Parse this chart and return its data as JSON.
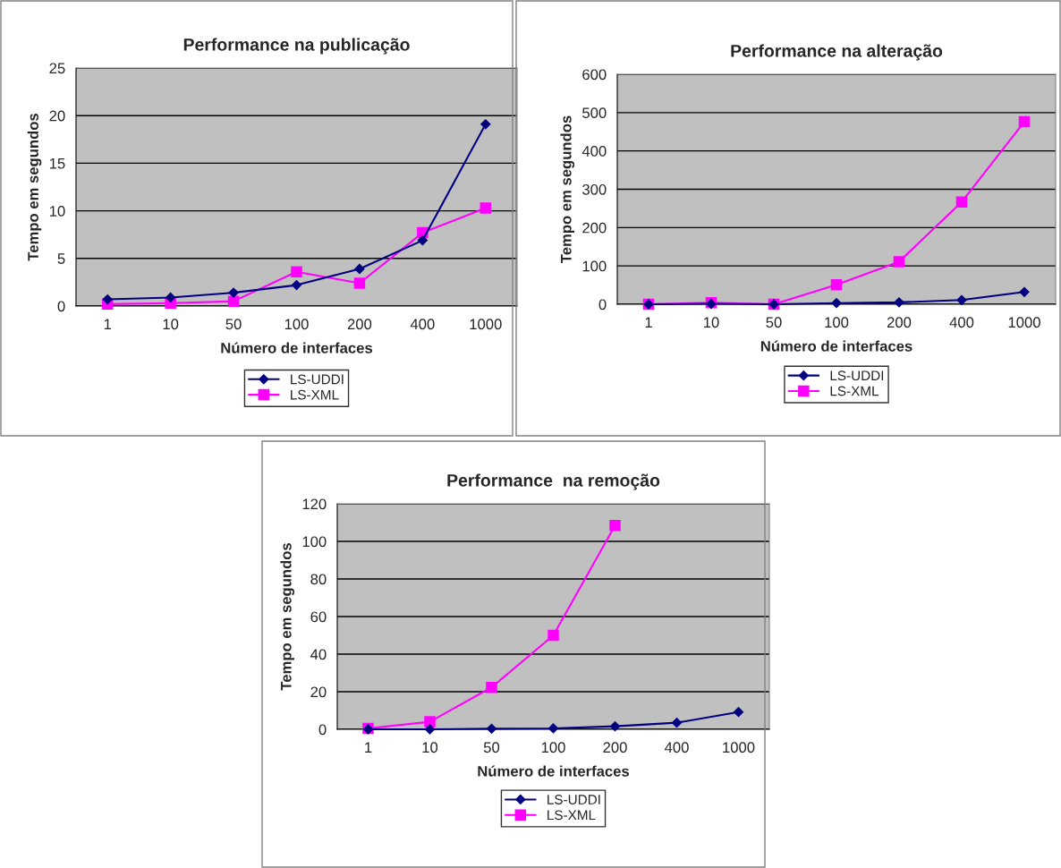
{
  "chart_data": [
    {
      "type": "line",
      "title": "Performance na publicação",
      "xlabel": "Número de interfaces",
      "ylabel": "Tempo em segundos",
      "categories": [
        "1",
        "10",
        "50",
        "100",
        "200",
        "400",
        "1000"
      ],
      "ylim": [
        0,
        25
      ],
      "yticks": [
        0,
        5,
        10,
        15,
        20,
        25
      ],
      "grid": "y",
      "legend": "bottom",
      "series": [
        {
          "name": "LS-UDDI",
          "color": "#000080",
          "marker": "diamond",
          "values": [
            0.7,
            0.9,
            1.4,
            2.2,
            3.9,
            6.9,
            19.1
          ]
        },
        {
          "name": "LS-XML",
          "color": "#ff00ff",
          "marker": "square",
          "values": [
            0.2,
            0.3,
            0.5,
            3.6,
            2.4,
            7.7,
            10.3
          ]
        }
      ]
    },
    {
      "type": "line",
      "title": "Performance na alteração",
      "xlabel": "Número de interfaces",
      "ylabel": "Tempo em segundos",
      "categories": [
        "1",
        "10",
        "50",
        "100",
        "200",
        "400",
        "1000"
      ],
      "ylim": [
        0,
        600
      ],
      "yticks": [
        0,
        100,
        200,
        300,
        400,
        500,
        600
      ],
      "grid": "y",
      "legend": "bottom",
      "series": [
        {
          "name": "LS-UDDI",
          "color": "#000080",
          "marker": "diamond",
          "values": [
            0,
            1,
            0,
            3,
            5,
            11,
            32
          ]
        },
        {
          "name": "LS-XML",
          "color": "#ff00ff",
          "marker": "square",
          "values": [
            0,
            4,
            0,
            51,
            111,
            267,
            476
          ]
        }
      ]
    },
    {
      "type": "line",
      "title": "Performance  na remoção",
      "xlabel": "Número de interfaces",
      "ylabel": "Tempo em segundos",
      "categories": [
        "1",
        "10",
        "50",
        "100",
        "200",
        "400",
        "1000"
      ],
      "ylim": [
        0,
        120
      ],
      "yticks": [
        0,
        20,
        40,
        60,
        80,
        100,
        120
      ],
      "grid": "y",
      "legend": "bottom",
      "series": [
        {
          "name": "LS-UDDI",
          "color": "#000080",
          "marker": "diamond",
          "values": [
            0,
            0,
            0.3,
            0.5,
            1.6,
            3.5,
            9.2
          ]
        },
        {
          "name": "LS-XML",
          "color": "#ff00ff",
          "marker": "square",
          "values": [
            0.5,
            4,
            22.3,
            50,
            108.5,
            null,
            null
          ]
        }
      ]
    }
  ]
}
